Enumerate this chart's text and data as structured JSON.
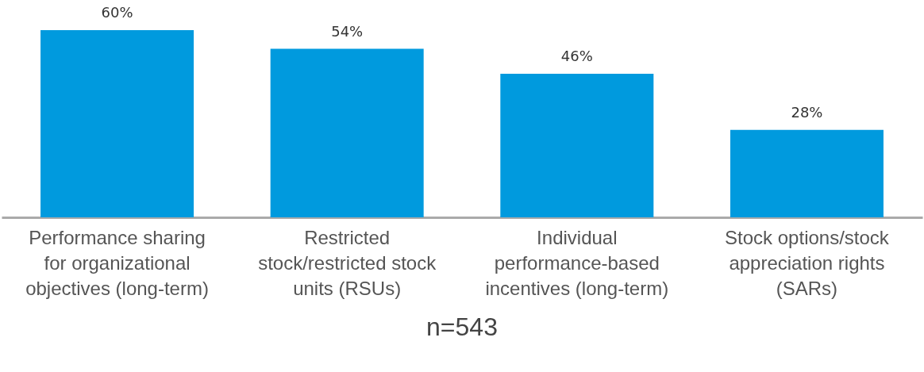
{
  "chart_data": {
    "type": "bar",
    "categories": [
      "Performance sharing for organizational objectives (long-term)",
      "Restricted stock/restricted stock units (RSUs)",
      "Individual performance-based incentives (long-term)",
      "Stock options/stock appreciation rights (SARs)"
    ],
    "values": [
      60,
      54,
      46,
      28
    ],
    "value_labels": [
      "60%",
      "54%",
      "46%",
      "28%"
    ],
    "color": "#009ade",
    "annotations": [
      "n=543"
    ]
  }
}
